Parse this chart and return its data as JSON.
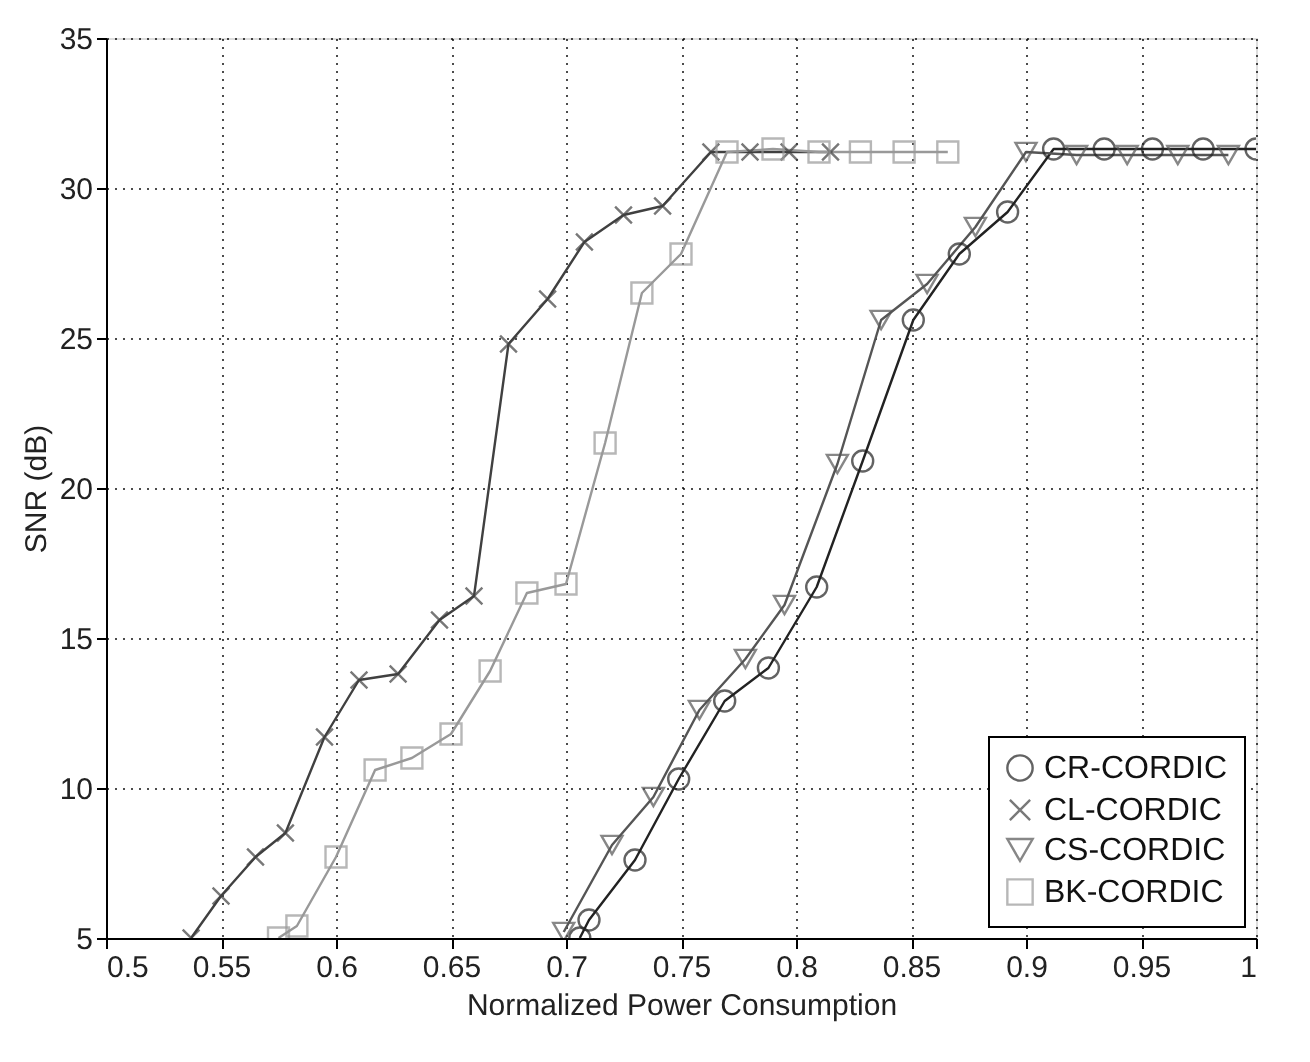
{
  "chart_data": {
    "type": "line",
    "xlabel": "Normalized Power Consumption",
    "ylabel": "SNR (dB)",
    "xlim": [
      0.5,
      1
    ],
    "xticks": [
      0.5,
      0.55,
      0.6,
      0.65,
      0.7,
      0.75,
      0.8,
      0.85,
      0.9,
      0.95,
      1
    ],
    "ylim": [
      5,
      35
    ],
    "yticks": [
      5,
      10,
      15,
      20,
      25,
      30,
      35
    ],
    "grid": true,
    "legend": "bottom right",
    "line_style": "solid",
    "series": [
      {
        "name": "CR-CORDIC",
        "color": "#222222",
        "marker": "circle",
        "x": [
          0.706,
          0.71,
          0.73,
          0.749,
          0.769,
          0.788,
          0.809,
          0.829,
          0.851,
          0.871,
          0.892,
          0.912,
          0.934,
          0.955,
          0.977,
          1.0
        ],
        "values": [
          5,
          5.6,
          7.6,
          10.3,
          12.9,
          14.0,
          16.7,
          20.9,
          25.6,
          27.8,
          29.2,
          31.3,
          31.3,
          31.3,
          31.3,
          31.3
        ]
      },
      {
        "name": "CL-CORDIC",
        "color": "#404040",
        "marker": "cross",
        "x": [
          0.537,
          0.55,
          0.565,
          0.578,
          0.595,
          0.61,
          0.627,
          0.645,
          0.66,
          0.675,
          0.692,
          0.708,
          0.725,
          0.742,
          0.763,
          0.78,
          0.797,
          0.815
        ],
        "values": [
          5,
          6.4,
          7.7,
          8.5,
          11.7,
          13.6,
          13.8,
          15.6,
          16.4,
          24.8,
          26.3,
          28.2,
          29.1,
          29.4,
          31.2,
          31.2,
          31.2,
          31.2
        ]
      },
      {
        "name": "CS-CORDIC",
        "color": "#555555",
        "marker": "triangle",
        "x": [
          0.699,
          0.72,
          0.738,
          0.758,
          0.778,
          0.795,
          0.818,
          0.837,
          0.857,
          0.878,
          0.9,
          0.922,
          0.944,
          0.966,
          0.988
        ],
        "values": [
          5.2,
          8.1,
          9.7,
          12.6,
          14.3,
          16.1,
          20.8,
          25.6,
          26.8,
          28.7,
          31.2,
          31.1,
          31.1,
          31.1,
          31.1
        ]
      },
      {
        "name": "BK-CORDIC",
        "color": "#999999",
        "marker": "square",
        "x": [
          0.575,
          0.583,
          0.6,
          0.617,
          0.633,
          0.65,
          0.667,
          0.683,
          0.7,
          0.717,
          0.733,
          0.75,
          0.77,
          0.79,
          0.81,
          0.828,
          0.847,
          0.866
        ],
        "values": [
          5,
          5.4,
          7.7,
          10.6,
          11,
          11.8,
          13.9,
          16.5,
          16.8,
          21.5,
          26.5,
          27.8,
          31.2,
          31.3,
          31.2,
          31.2,
          31.2,
          31.2
        ]
      }
    ]
  }
}
